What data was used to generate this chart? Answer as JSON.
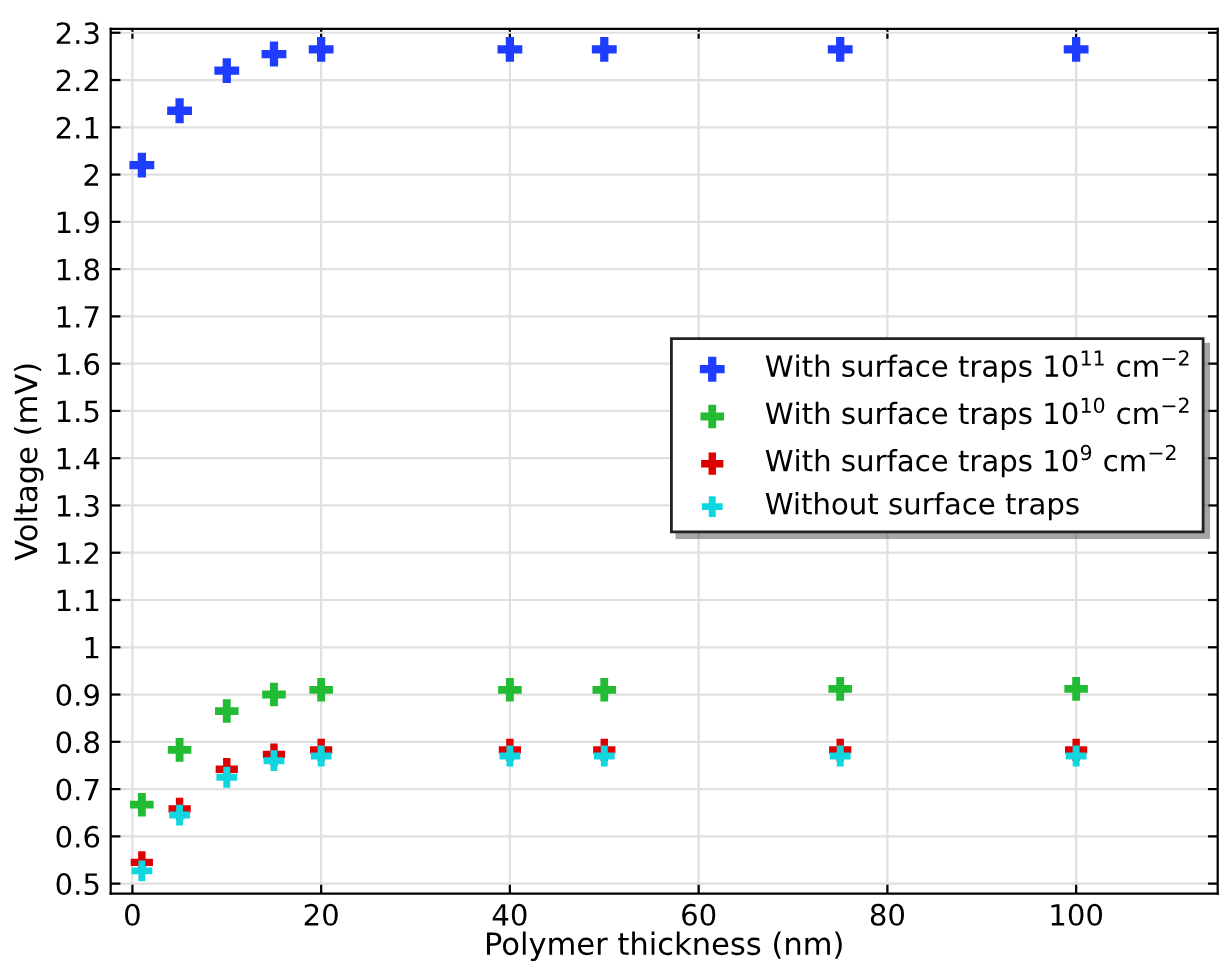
{
  "chart_data": {
    "type": "scatter",
    "xlabel": "Polymer thickness (nm)",
    "ylabel": "Voltage (mV)",
    "x": [
      1,
      5,
      10,
      15,
      20,
      40,
      50,
      75,
      100
    ],
    "series": [
      {
        "name": "With surface traps 10$^{11}$ cm$^{−2}$",
        "color": "#1f3dff",
        "values": [
          2.02,
          2.135,
          2.22,
          2.255,
          2.265,
          2.265,
          2.265,
          2.265,
          2.265
        ]
      },
      {
        "name": "With surface traps 10$^{10}$ cm$^{−2}$",
        "color": "#22bb33",
        "values": [
          0.667,
          0.783,
          0.865,
          0.9,
          0.91,
          0.91,
          0.91,
          0.912,
          0.912
        ]
      },
      {
        "name": "With surface traps 10$^{9}$ cm$^{−2}$",
        "color": "#dd0000",
        "values": [
          0.545,
          0.658,
          0.742,
          0.773,
          0.783,
          0.783,
          0.783,
          0.783,
          0.783
        ]
      },
      {
        "name": "Without surface traps",
        "color": "#11d6e0",
        "values": [
          0.527,
          0.645,
          0.725,
          0.76,
          0.77,
          0.77,
          0.77,
          0.77,
          0.77
        ]
      }
    ],
    "xlim": [
      -2.3,
      115
    ],
    "xticks": [
      0,
      20,
      40,
      60,
      80,
      100
    ],
    "ylim": [
      0.479,
      2.308
    ],
    "yticks": [
      0.5,
      0.6,
      0.7,
      0.8,
      0.9,
      1,
      1.1,
      1.2,
      1.3,
      1.4,
      1.5,
      1.6,
      1.7,
      1.8,
      1.9,
      2,
      2.1,
      2.2,
      2.3
    ],
    "grid": true,
    "legend": "right",
    "marker": "cross"
  }
}
